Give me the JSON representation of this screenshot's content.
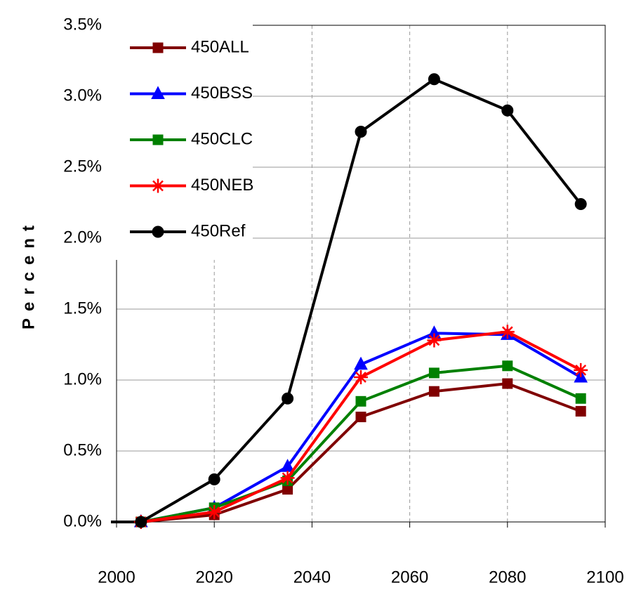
{
  "chart_data": {
    "type": "line",
    "ylabel": "Percent",
    "x": [
      2005,
      2020,
      2035,
      2050,
      2065,
      2080,
      2095
    ],
    "series": [
      {
        "name": "450ALL",
        "color": "#800000",
        "marker": "square",
        "values": [
          0,
          0.05,
          0.23,
          0.74,
          0.92,
          0.975,
          0.78
        ]
      },
      {
        "name": "450BSS",
        "color": "#0000ff",
        "marker": "triangle",
        "values": [
          0,
          0.1,
          0.39,
          1.11,
          1.33,
          1.32,
          1.02
        ]
      },
      {
        "name": "450CLC",
        "color": "#008000",
        "marker": "square",
        "values": [
          0,
          0.1,
          0.29,
          0.85,
          1.05,
          1.1,
          0.87
        ]
      },
      {
        "name": "450NEB",
        "color": "#ff0000",
        "marker": "asterisk",
        "values": [
          0,
          0.07,
          0.31,
          1.02,
          1.28,
          1.34,
          1.07
        ]
      },
      {
        "name": "450Ref",
        "color": "#000000",
        "marker": "circle",
        "values": [
          0,
          0.3,
          0.87,
          2.75,
          3.12,
          2.9,
          2.24
        ]
      }
    ],
    "xlim": [
      2000,
      2100
    ],
    "xticks": [
      2000,
      2020,
      2040,
      2060,
      2080,
      2100
    ],
    "ylim": [
      0,
      3.5
    ],
    "yticks": [
      {
        "value": 0,
        "label": "0.0%"
      },
      {
        "value": 0.5,
        "label": "0.5%"
      },
      {
        "value": 1,
        "label": "1.0%"
      },
      {
        "value": 1.5,
        "label": "1.5%"
      },
      {
        "value": 2,
        "label": "2.0%"
      },
      {
        "value": 2.5,
        "label": "2.5%"
      },
      {
        "value": 3,
        "label": "3.0%"
      },
      {
        "value": 3.5,
        "label": "3.5%"
      }
    ],
    "grid": true,
    "legend": "upper left"
  }
}
